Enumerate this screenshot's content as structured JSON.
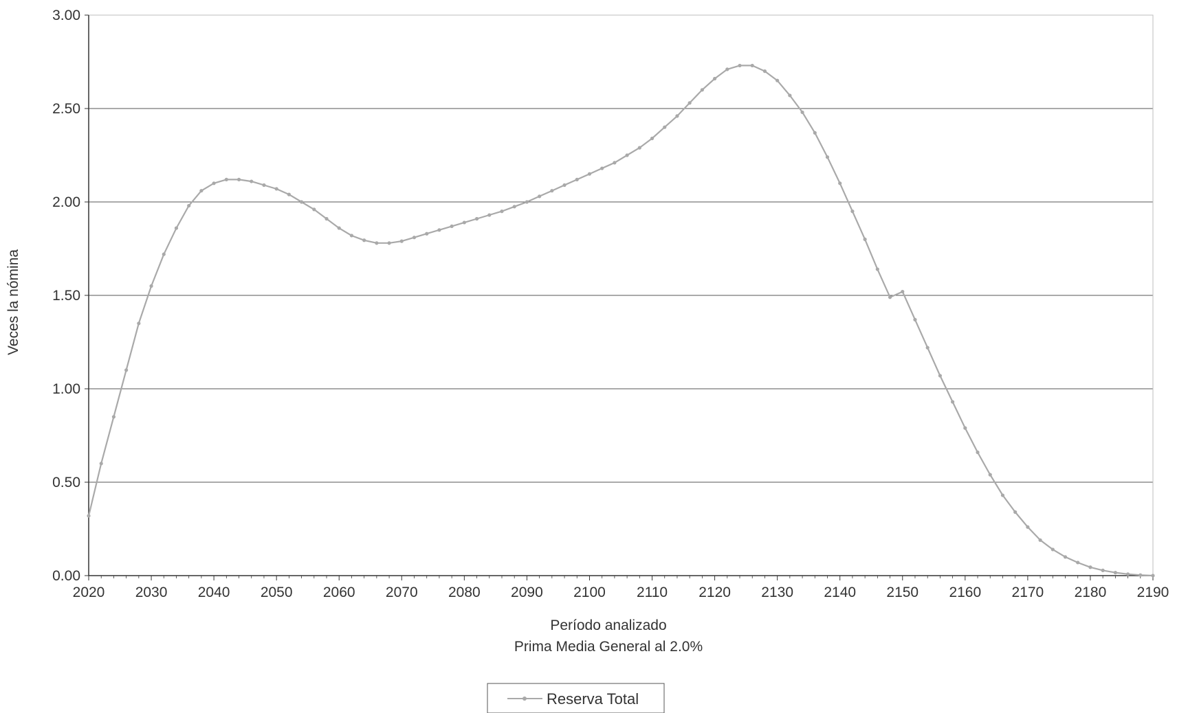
{
  "chart_data": {
    "type": "line",
    "title": "",
    "xlabel": "Período analizado",
    "xlabel_sub": "Prima Media General al 2.0%",
    "ylabel": "Veces la nómina",
    "xlim": [
      2020,
      2190
    ],
    "ylim": [
      0,
      3
    ],
    "x_ticks": [
      "2020",
      "2030",
      "2040",
      "2050",
      "2060",
      "2070",
      "2080",
      "2090",
      "2100",
      "2110",
      "2120",
      "2130",
      "2140",
      "2150",
      "2160",
      "2170",
      "2180",
      "2190"
    ],
    "y_ticks": [
      "0.00",
      "0.50",
      "1.00",
      "1.50",
      "2.00",
      "2.50",
      "3.00"
    ],
    "grid": true,
    "legend_position": "bottom-center",
    "series": [
      {
        "name": "Reserva Total",
        "color": "#a9a9a9",
        "points": [
          [
            2020,
            0.32
          ],
          [
            2022,
            0.6
          ],
          [
            2024,
            0.85
          ],
          [
            2026,
            1.1
          ],
          [
            2028,
            1.35
          ],
          [
            2030,
            1.55
          ],
          [
            2032,
            1.72
          ],
          [
            2034,
            1.86
          ],
          [
            2036,
            1.98
          ],
          [
            2038,
            2.06
          ],
          [
            2040,
            2.1
          ],
          [
            2042,
            2.12
          ],
          [
            2044,
            2.12
          ],
          [
            2046,
            2.11
          ],
          [
            2048,
            2.09
          ],
          [
            2050,
            2.07
          ],
          [
            2052,
            2.04
          ],
          [
            2054,
            2.0
          ],
          [
            2056,
            1.96
          ],
          [
            2058,
            1.91
          ],
          [
            2060,
            1.86
          ],
          [
            2062,
            1.82
          ],
          [
            2064,
            1.795
          ],
          [
            2066,
            1.78
          ],
          [
            2068,
            1.78
          ],
          [
            2070,
            1.79
          ],
          [
            2072,
            1.81
          ],
          [
            2074,
            1.83
          ],
          [
            2076,
            1.85
          ],
          [
            2078,
            1.87
          ],
          [
            2080,
            1.89
          ],
          [
            2082,
            1.91
          ],
          [
            2084,
            1.93
          ],
          [
            2086,
            1.95
          ],
          [
            2088,
            1.975
          ],
          [
            2090,
            2.0
          ],
          [
            2092,
            2.03
          ],
          [
            2094,
            2.06
          ],
          [
            2096,
            2.09
          ],
          [
            2098,
            2.12
          ],
          [
            2100,
            2.15
          ],
          [
            2102,
            2.18
          ],
          [
            2104,
            2.21
          ],
          [
            2106,
            2.25
          ],
          [
            2108,
            2.29
          ],
          [
            2110,
            2.34
          ],
          [
            2112,
            2.4
          ],
          [
            2114,
            2.46
          ],
          [
            2116,
            2.53
          ],
          [
            2118,
            2.6
          ],
          [
            2120,
            2.66
          ],
          [
            2122,
            2.71
          ],
          [
            2124,
            2.73
          ],
          [
            2126,
            2.73
          ],
          [
            2128,
            2.7
          ],
          [
            2130,
            2.65
          ],
          [
            2132,
            2.57
          ],
          [
            2134,
            2.48
          ],
          [
            2136,
            2.37
          ],
          [
            2138,
            2.24
          ],
          [
            2140,
            2.1
          ],
          [
            2142,
            1.95
          ],
          [
            2144,
            1.8
          ],
          [
            2146,
            1.64
          ],
          [
            2148,
            1.49
          ],
          [
            2150,
            1.52
          ],
          [
            2152,
            1.37
          ],
          [
            2154,
            1.22
          ],
          [
            2156,
            1.07
          ],
          [
            2158,
            0.93
          ],
          [
            2160,
            0.79
          ],
          [
            2162,
            0.66
          ],
          [
            2164,
            0.54
          ],
          [
            2166,
            0.43
          ],
          [
            2168,
            0.34
          ],
          [
            2170,
            0.26
          ],
          [
            2172,
            0.19
          ],
          [
            2174,
            0.14
          ],
          [
            2176,
            0.1
          ],
          [
            2178,
            0.07
          ],
          [
            2180,
            0.045
          ],
          [
            2182,
            0.028
          ],
          [
            2184,
            0.016
          ],
          [
            2186,
            0.008
          ],
          [
            2188,
            0.003
          ],
          [
            2190,
            0.0
          ]
        ]
      }
    ]
  }
}
